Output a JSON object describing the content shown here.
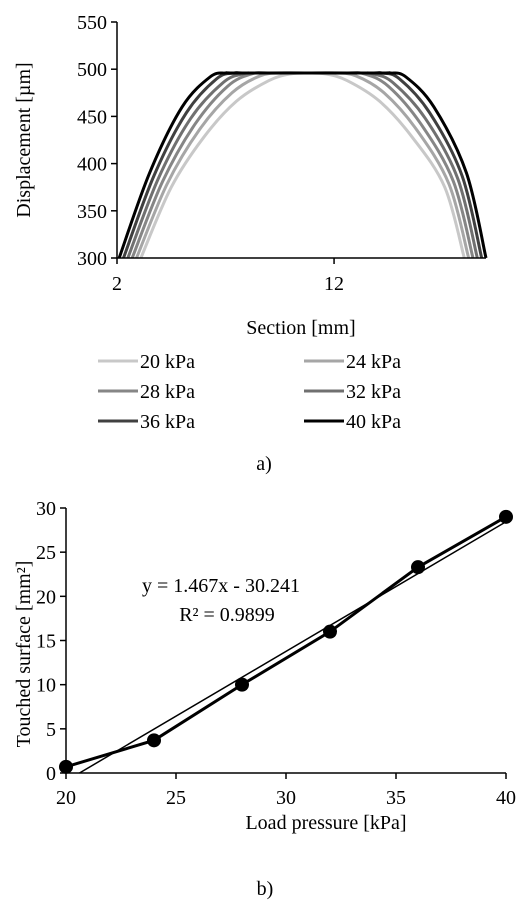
{
  "chart_data": [
    {
      "type": "line",
      "panel_label": "a)",
      "xlabel": "Section [mm]",
      "ylabel": "Displacement [µm]",
      "xlim": [
        2,
        19
      ],
      "ylim": [
        300,
        550
      ],
      "x_ticks": [
        2,
        12
      ],
      "y_ticks": [
        300,
        350,
        400,
        450,
        500,
        550
      ],
      "grid": false,
      "legend_position": "bottom",
      "series": [
        {
          "name": "20 kPa",
          "color": "#c8c8c8",
          "x": [
            3.1,
            4.5,
            6.0,
            7.5,
            9.0,
            10.0,
            10.8,
            11.6,
            12.6,
            14.1,
            15.6,
            17.1,
            18.0
          ],
          "y": [
            300,
            375,
            428,
            466,
            488,
            495,
            496,
            495,
            488,
            466,
            428,
            375,
            300
          ]
        },
        {
          "name": "24 kPa",
          "color": "#a6a6a6",
          "x": [
            2.9,
            4.3,
            5.8,
            7.3,
            8.6,
            9.6,
            10.8,
            12.0,
            13.0,
            14.3,
            15.8,
            17.3,
            18.2
          ],
          "y": [
            300,
            378,
            436,
            475,
            493,
            496,
            496,
            496,
            493,
            475,
            436,
            378,
            300
          ]
        },
        {
          "name": "28 kPa",
          "color": "#868686",
          "x": [
            2.7,
            4.1,
            5.6,
            7.1,
            8.2,
            9.0,
            10.8,
            12.6,
            13.4,
            14.5,
            16.0,
            17.5,
            18.4
          ],
          "y": [
            300,
            381,
            442,
            482,
            495,
            496,
            496,
            496,
            495,
            482,
            442,
            381,
            300
          ]
        },
        {
          "name": "32 kPa",
          "color": "#707070",
          "x": [
            2.5,
            3.9,
            5.4,
            6.9,
            7.8,
            8.4,
            10.8,
            13.2,
            13.8,
            14.7,
            16.2,
            17.7,
            18.6
          ],
          "y": [
            300,
            384,
            448,
            486,
            495,
            496,
            496,
            496,
            495,
            486,
            448,
            384,
            300
          ]
        },
        {
          "name": "36 kPa",
          "color": "#404040",
          "x": [
            2.3,
            3.7,
            5.2,
            6.6,
            7.4,
            7.9,
            10.8,
            13.7,
            14.2,
            15.0,
            16.4,
            17.9,
            18.8
          ],
          "y": [
            300,
            387,
            454,
            490,
            496,
            496,
            496,
            496,
            496,
            490,
            454,
            387,
            300
          ]
        },
        {
          "name": "40 kPa",
          "color": "#000000",
          "x": [
            2.1,
            3.5,
            5.0,
            6.3,
            7.0,
            7.4,
            10.8,
            14.2,
            14.6,
            15.3,
            16.6,
            18.1,
            19.0
          ],
          "y": [
            300,
            390,
            460,
            492,
            496,
            496,
            496,
            496,
            496,
            492,
            460,
            390,
            300
          ]
        }
      ]
    },
    {
      "type": "scatter",
      "panel_label": "b)",
      "xlabel": "Load pressure [kPa]",
      "ylabel": "Touched surface [mm²]",
      "xlim": [
        20,
        40
      ],
      "ylim": [
        0,
        30
      ],
      "x_ticks": [
        20,
        25,
        30,
        35,
        40
      ],
      "y_ticks": [
        0,
        5,
        10,
        15,
        20,
        25,
        30
      ],
      "grid": false,
      "series": [
        {
          "x": [
            20,
            24,
            28,
            32,
            36,
            40
          ],
          "y": [
            0.7,
            3.7,
            10.0,
            16.0,
            23.3,
            29.0
          ],
          "color": "#000000"
        }
      ],
      "trendline": {
        "slope": 1.467,
        "intercept": -30.241,
        "equation": "y = 1.467x - 30.241",
        "r2": "R² = 0.9899",
        "color": "#000000"
      }
    }
  ]
}
